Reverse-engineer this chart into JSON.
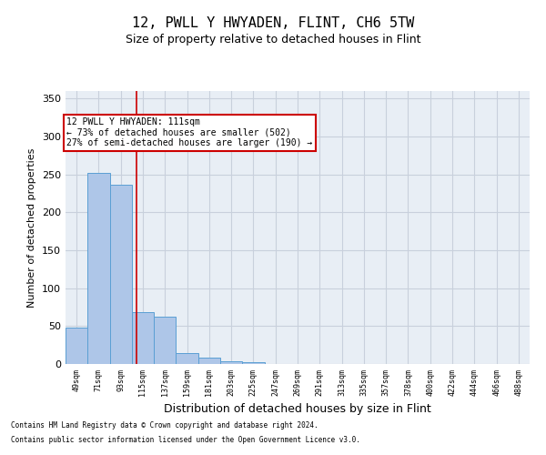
{
  "title": "12, PWLL Y HWYADEN, FLINT, CH6 5TW",
  "subtitle": "Size of property relative to detached houses in Flint",
  "xlabel": "Distribution of detached houses by size in Flint",
  "ylabel": "Number of detached properties",
  "footnote1": "Contains HM Land Registry data © Crown copyright and database right 2024.",
  "footnote2": "Contains public sector information licensed under the Open Government Licence v3.0.",
  "bin_labels": [
    "49sqm",
    "71sqm",
    "93sqm",
    "115sqm",
    "137sqm",
    "159sqm",
    "181sqm",
    "203sqm",
    "225sqm",
    "247sqm",
    "269sqm",
    "291sqm",
    "313sqm",
    "335sqm",
    "357sqm",
    "378sqm",
    "400sqm",
    "422sqm",
    "444sqm",
    "466sqm",
    "488sqm"
  ],
  "bar_heights": [
    48,
    252,
    236,
    68,
    63,
    15,
    8,
    4,
    3,
    0,
    0,
    0,
    0,
    0,
    0,
    0,
    0,
    0,
    0,
    0,
    0
  ],
  "bar_color": "#aec6e8",
  "bar_edge_color": "#5a9fd4",
  "vline_x": 2.73,
  "vline_color": "#cc0000",
  "annotation_line1": "12 PWLL Y HWYADEN: 111sqm",
  "annotation_line2": "← 73% of detached houses are smaller (502)",
  "annotation_line3": "27% of semi-detached houses are larger (190) →",
  "annotation_box_color": "#ffffff",
  "annotation_box_edge": "#cc0000",
  "ylim": [
    0,
    360
  ],
  "yticks": [
    0,
    50,
    100,
    150,
    200,
    250,
    300,
    350
  ],
  "grid_color": "#c8d0dc",
  "bg_color": "#e8eef5",
  "title_fontsize": 11,
  "subtitle_fontsize": 9,
  "footnote_fontsize": 5.5
}
